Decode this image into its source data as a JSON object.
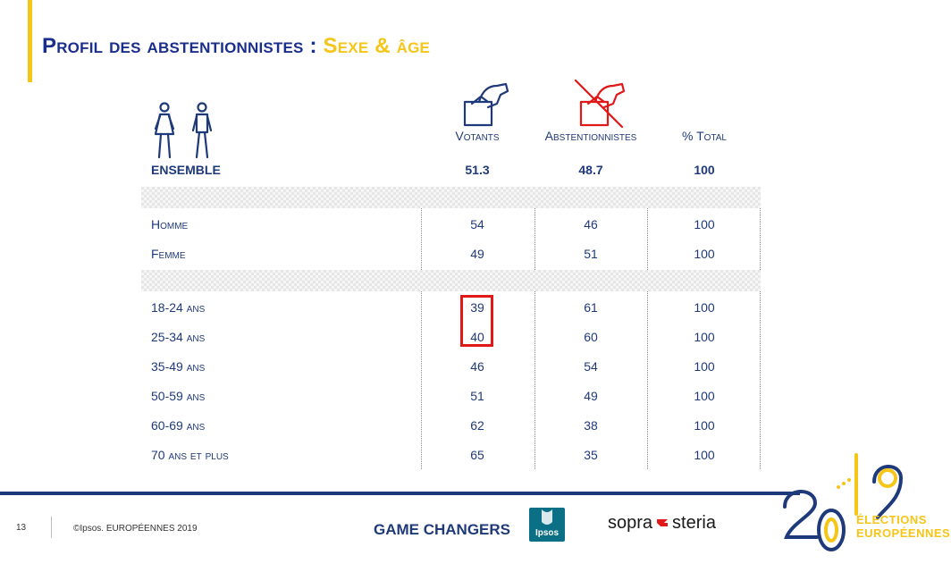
{
  "title": {
    "part1": "Profil des abstentionnistes :",
    "part2": "Sexe & âge"
  },
  "columns": {
    "votants": "Votants",
    "abstentionnistes": "Abstentionnistes",
    "total": "% Total"
  },
  "ensemble": {
    "label": "ENSEMBLE",
    "votants": "51.3",
    "abstentionnistes": "48.7",
    "total": "100"
  },
  "sexe_rows": [
    {
      "label": "Homme",
      "votants": "54",
      "abstentionnistes": "46",
      "total": "100"
    },
    {
      "label": "Femme",
      "votants": "49",
      "abstentionnistes": "51",
      "total": "100"
    }
  ],
  "age_rows": [
    {
      "label": "18-24 ans",
      "votants": "39",
      "abstentionnistes": "61",
      "total": "100"
    },
    {
      "label": "25-34 ans",
      "votants": "40",
      "abstentionnistes": "60",
      "total": "100"
    },
    {
      "label": "35-49 ans",
      "votants": "46",
      "abstentionnistes": "54",
      "total": "100"
    },
    {
      "label": "50-59 ans",
      "votants": "51",
      "abstentionnistes": "49",
      "total": "100"
    },
    {
      "label": "60-69 ans",
      "votants": "62",
      "abstentionnistes": "38",
      "total": "100"
    },
    {
      "label": "70 ans et plus",
      "votants": "65",
      "abstentionnistes": "35",
      "total": "100"
    }
  ],
  "footer": {
    "page": "13",
    "copyright": "©Ipsos.  EUROPÉENNES 2019",
    "game_changers": "GAME CHANGERS",
    "ipsos": "Ipsos",
    "sopra_left": "sopra",
    "sopra_right": "steria",
    "elections_line1": "ÉLECTIONS",
    "elections_line2": "EUROPÉENNES"
  },
  "icons": {
    "people": "man-woman-icon",
    "vote": "ballot-box-icon",
    "abstain": "crossed-ballot-box-icon"
  },
  "colors": {
    "navy": "#1a2f8c",
    "yellow": "#f5c518",
    "red": "#e01818",
    "text": "#1f3a7a"
  }
}
